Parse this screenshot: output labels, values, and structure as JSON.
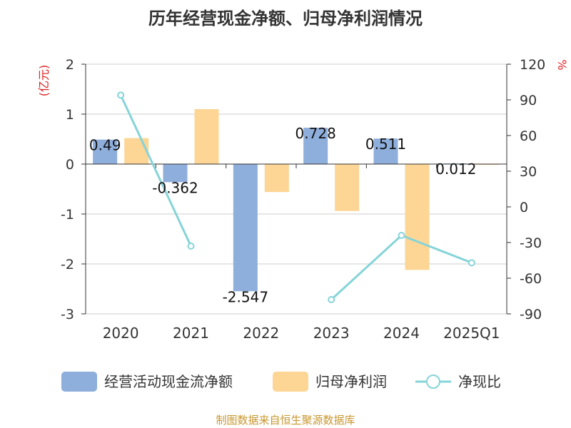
{
  "chart_data": {
    "type": "bar",
    "title": "历年经营现金净额、归母净利润情况",
    "categories": [
      "2020",
      "2021",
      "2022",
      "2023",
      "2024",
      "2025Q1"
    ],
    "series": [
      {
        "name": "经营活动现金流净额",
        "kind": "bar",
        "axis": "left",
        "color": "#8eaedb",
        "values": [
          0.49,
          -0.362,
          -2.547,
          0.728,
          0.511,
          0.012
        ],
        "labels": [
          "0.49",
          "-0.362",
          "-2.547",
          "0.728",
          "0.511",
          "0.012"
        ]
      },
      {
        "name": "归母净利润",
        "kind": "bar",
        "axis": "left",
        "color": "#fdd594",
        "values": [
          0.52,
          1.1,
          -0.56,
          -0.94,
          -2.12,
          -0.01
        ]
      },
      {
        "name": "净现比",
        "kind": "line",
        "axis": "right",
        "color": "#86d4d8",
        "values": [
          94,
          -33,
          null,
          -78,
          -24,
          -47
        ]
      }
    ],
    "y_left": {
      "unit": "(亿元)",
      "min": -3,
      "max": 2,
      "ticks": [
        2,
        1,
        0,
        -1,
        -2,
        -3
      ]
    },
    "y_right": {
      "unit": "%",
      "min": -90,
      "max": 120,
      "ticks": [
        120,
        90,
        60,
        30,
        0,
        -30,
        -60,
        -90
      ]
    },
    "legend_position": "bottom",
    "grid": true
  },
  "source": "制图数据来自恒生聚源数据库"
}
